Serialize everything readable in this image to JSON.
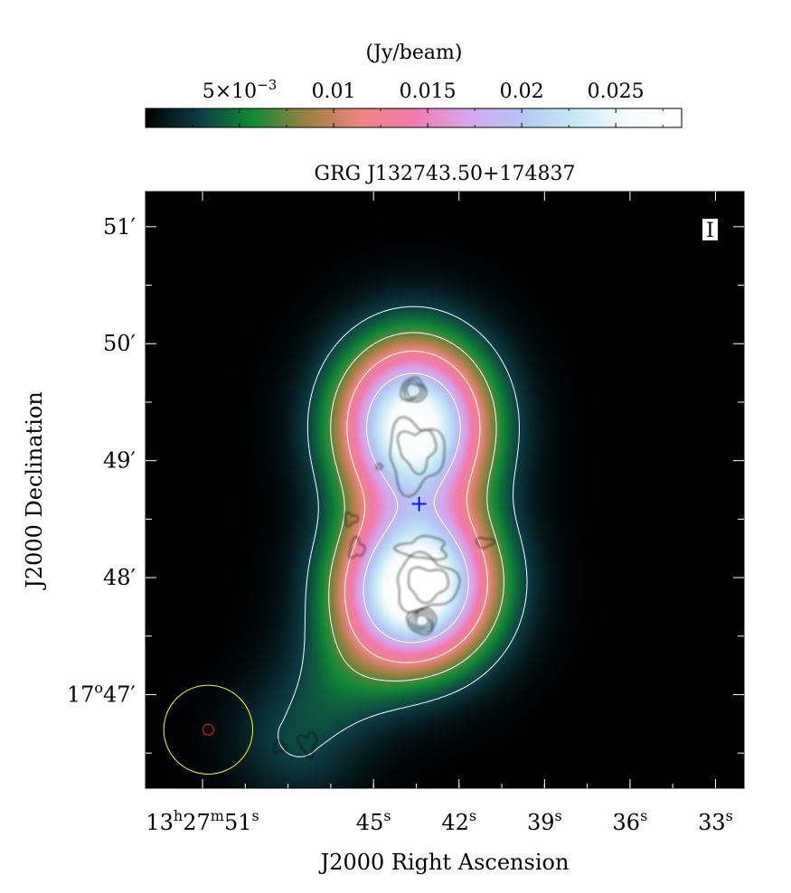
{
  "chart_data": {
    "type": "heatmap",
    "title": "GRG J132743.50+174837",
    "xlabel": "J2000 Right Ascension",
    "ylabel": "J2000 Declination",
    "stokes_label": "I",
    "colorbar": {
      "unit_label": "(Jy/beam)",
      "range": [
        0.0,
        0.0285
      ],
      "ticks": [
        {
          "value": 0.005,
          "base": "5×10",
          "exp": "−3"
        },
        {
          "value": 0.01,
          "base": "0.01",
          "exp": ""
        },
        {
          "value": 0.015,
          "base": "0.015",
          "exp": ""
        },
        {
          "value": 0.02,
          "base": "0.02",
          "exp": ""
        },
        {
          "value": 0.025,
          "base": "0.025",
          "exp": ""
        }
      ],
      "colormap": [
        "#000000",
        "#0c3c44",
        "#118a36",
        "#9a8040",
        "#ee8580",
        "#f27aae",
        "#d6a6ec",
        "#b5c6f4",
        "#c6e9f6",
        "#f7fbfb",
        "#ffffff"
      ]
    },
    "x_axis": {
      "unit": "RA seconds (13h27m)",
      "range_seconds": [
        53.0,
        32.0
      ],
      "ticks": [
        {
          "value": 51,
          "h": "13",
          "m": "27",
          "s": "51"
        },
        {
          "value": 45,
          "h": "",
          "m": "",
          "s": "45"
        },
        {
          "value": 42,
          "h": "",
          "m": "",
          "s": "42"
        },
        {
          "value": 39,
          "h": "",
          "m": "",
          "s": "39"
        },
        {
          "value": 36,
          "h": "",
          "m": "",
          "s": "36"
        },
        {
          "value": 33,
          "h": "",
          "m": "",
          "s": "33"
        }
      ]
    },
    "y_axis": {
      "unit": "Dec arcmin (17°xx′)",
      "range_arcmin": [
        46.2,
        51.3
      ],
      "ticks": [
        {
          "value": 47,
          "deg": "17",
          "min": "47"
        },
        {
          "value": 48,
          "deg": "",
          "min": "48"
        },
        {
          "value": 49,
          "deg": "",
          "min": "49"
        },
        {
          "value": 50,
          "deg": "",
          "min": "50"
        },
        {
          "value": 51,
          "deg": "",
          "min": "51"
        }
      ]
    },
    "sources": [
      {
        "name": "northern lobe",
        "ra_s": 43.6,
        "dec_min": 49.3,
        "peak": 0.0285
      },
      {
        "name": "southern lobe",
        "ra_s": 43.4,
        "dec_min": 47.95,
        "peak": 0.0285
      },
      {
        "name": "tail",
        "ra_s": 47.6,
        "dec_min": 46.65,
        "peak": 0.0045
      }
    ],
    "core_marker": {
      "symbol": "+",
      "ra_s": 43.4,
      "dec_min": 48.63,
      "color": "#1010ff"
    },
    "beam": {
      "ra_s": 50.8,
      "dec_min": 46.7,
      "radius_arcmin": 0.38,
      "color": "#ffff00",
      "inner_color": "#ff2020"
    },
    "white_contour_color": "#ffffff",
    "black_contour_color": "#000000"
  }
}
